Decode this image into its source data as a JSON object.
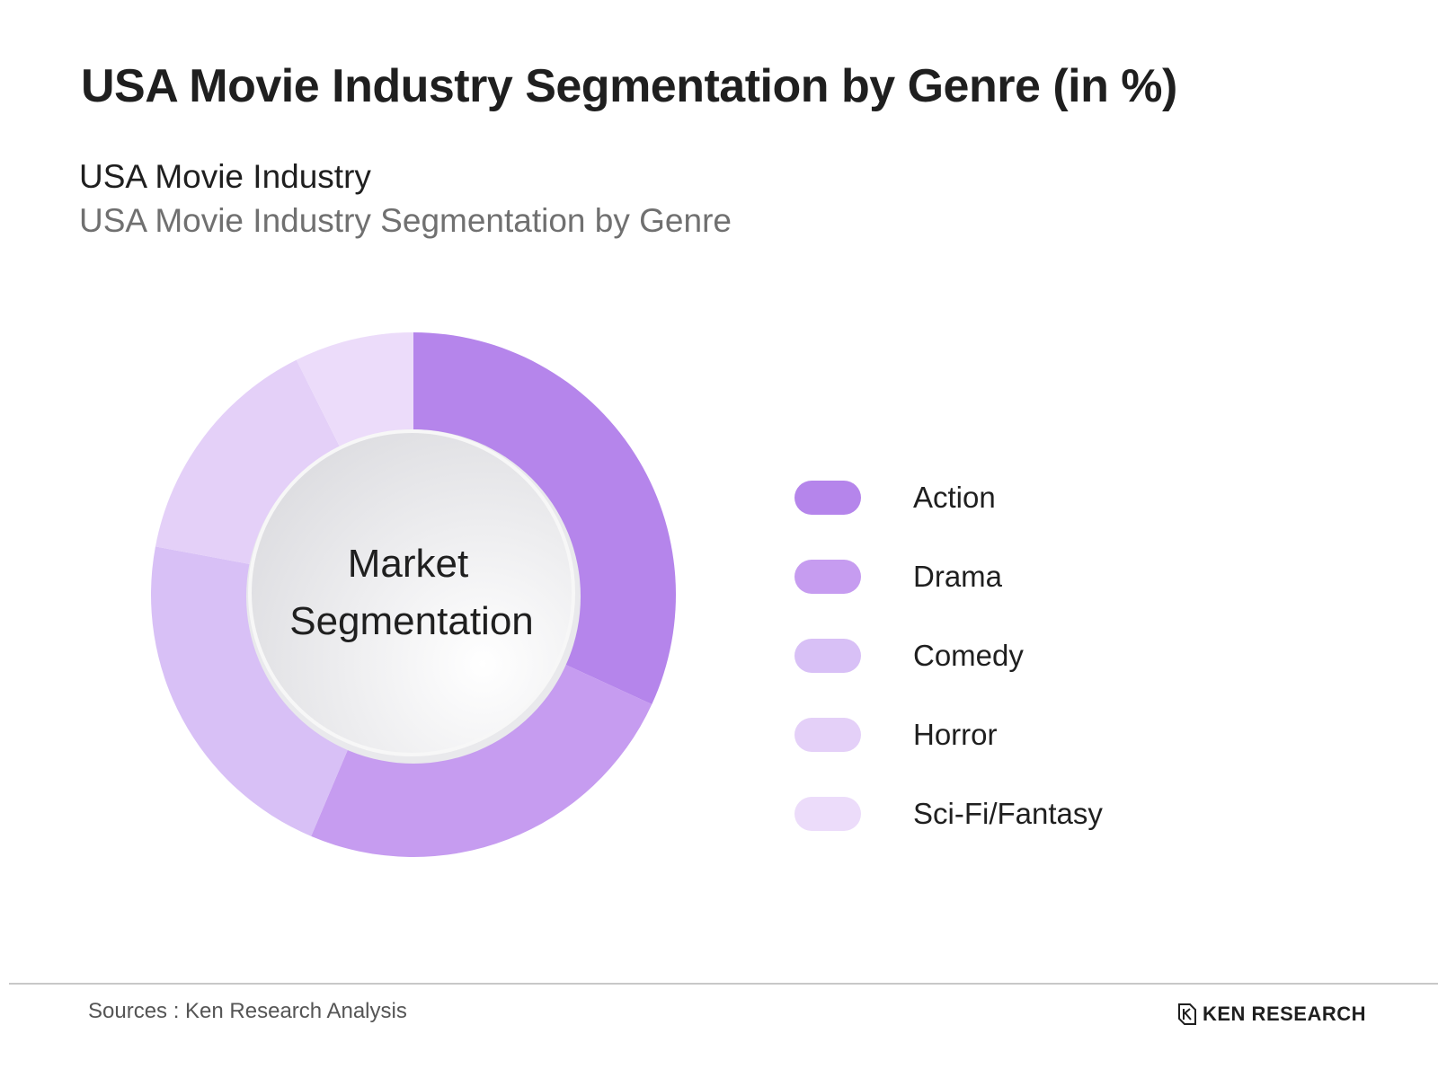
{
  "header": {
    "title": "USA Movie Industry Segmentation by Genre (in %)",
    "subtitle": "USA Movie Industry",
    "subtitle2": "USA Movie Industry Segmentation by Genre"
  },
  "chart_data": {
    "type": "pie",
    "variant": "donut",
    "center_label": [
      "Market",
      "Segmentation"
    ],
    "categories": [
      "Action",
      "Drama",
      "Comedy",
      "Horror",
      "Sci-Fi/Fantasy"
    ],
    "values": [
      32.5,
      25,
      22,
      15,
      7.5
    ],
    "colors": [
      "#b585eb",
      "#c69cf0",
      "#d8c0f6",
      "#e4d0f8",
      "#ecdcfa"
    ],
    "legend": "right",
    "start_angle": "top, clockwise"
  },
  "footer": {
    "source": "Sources : Ken Research Analysis",
    "brand": "KEN RESEARCH"
  }
}
